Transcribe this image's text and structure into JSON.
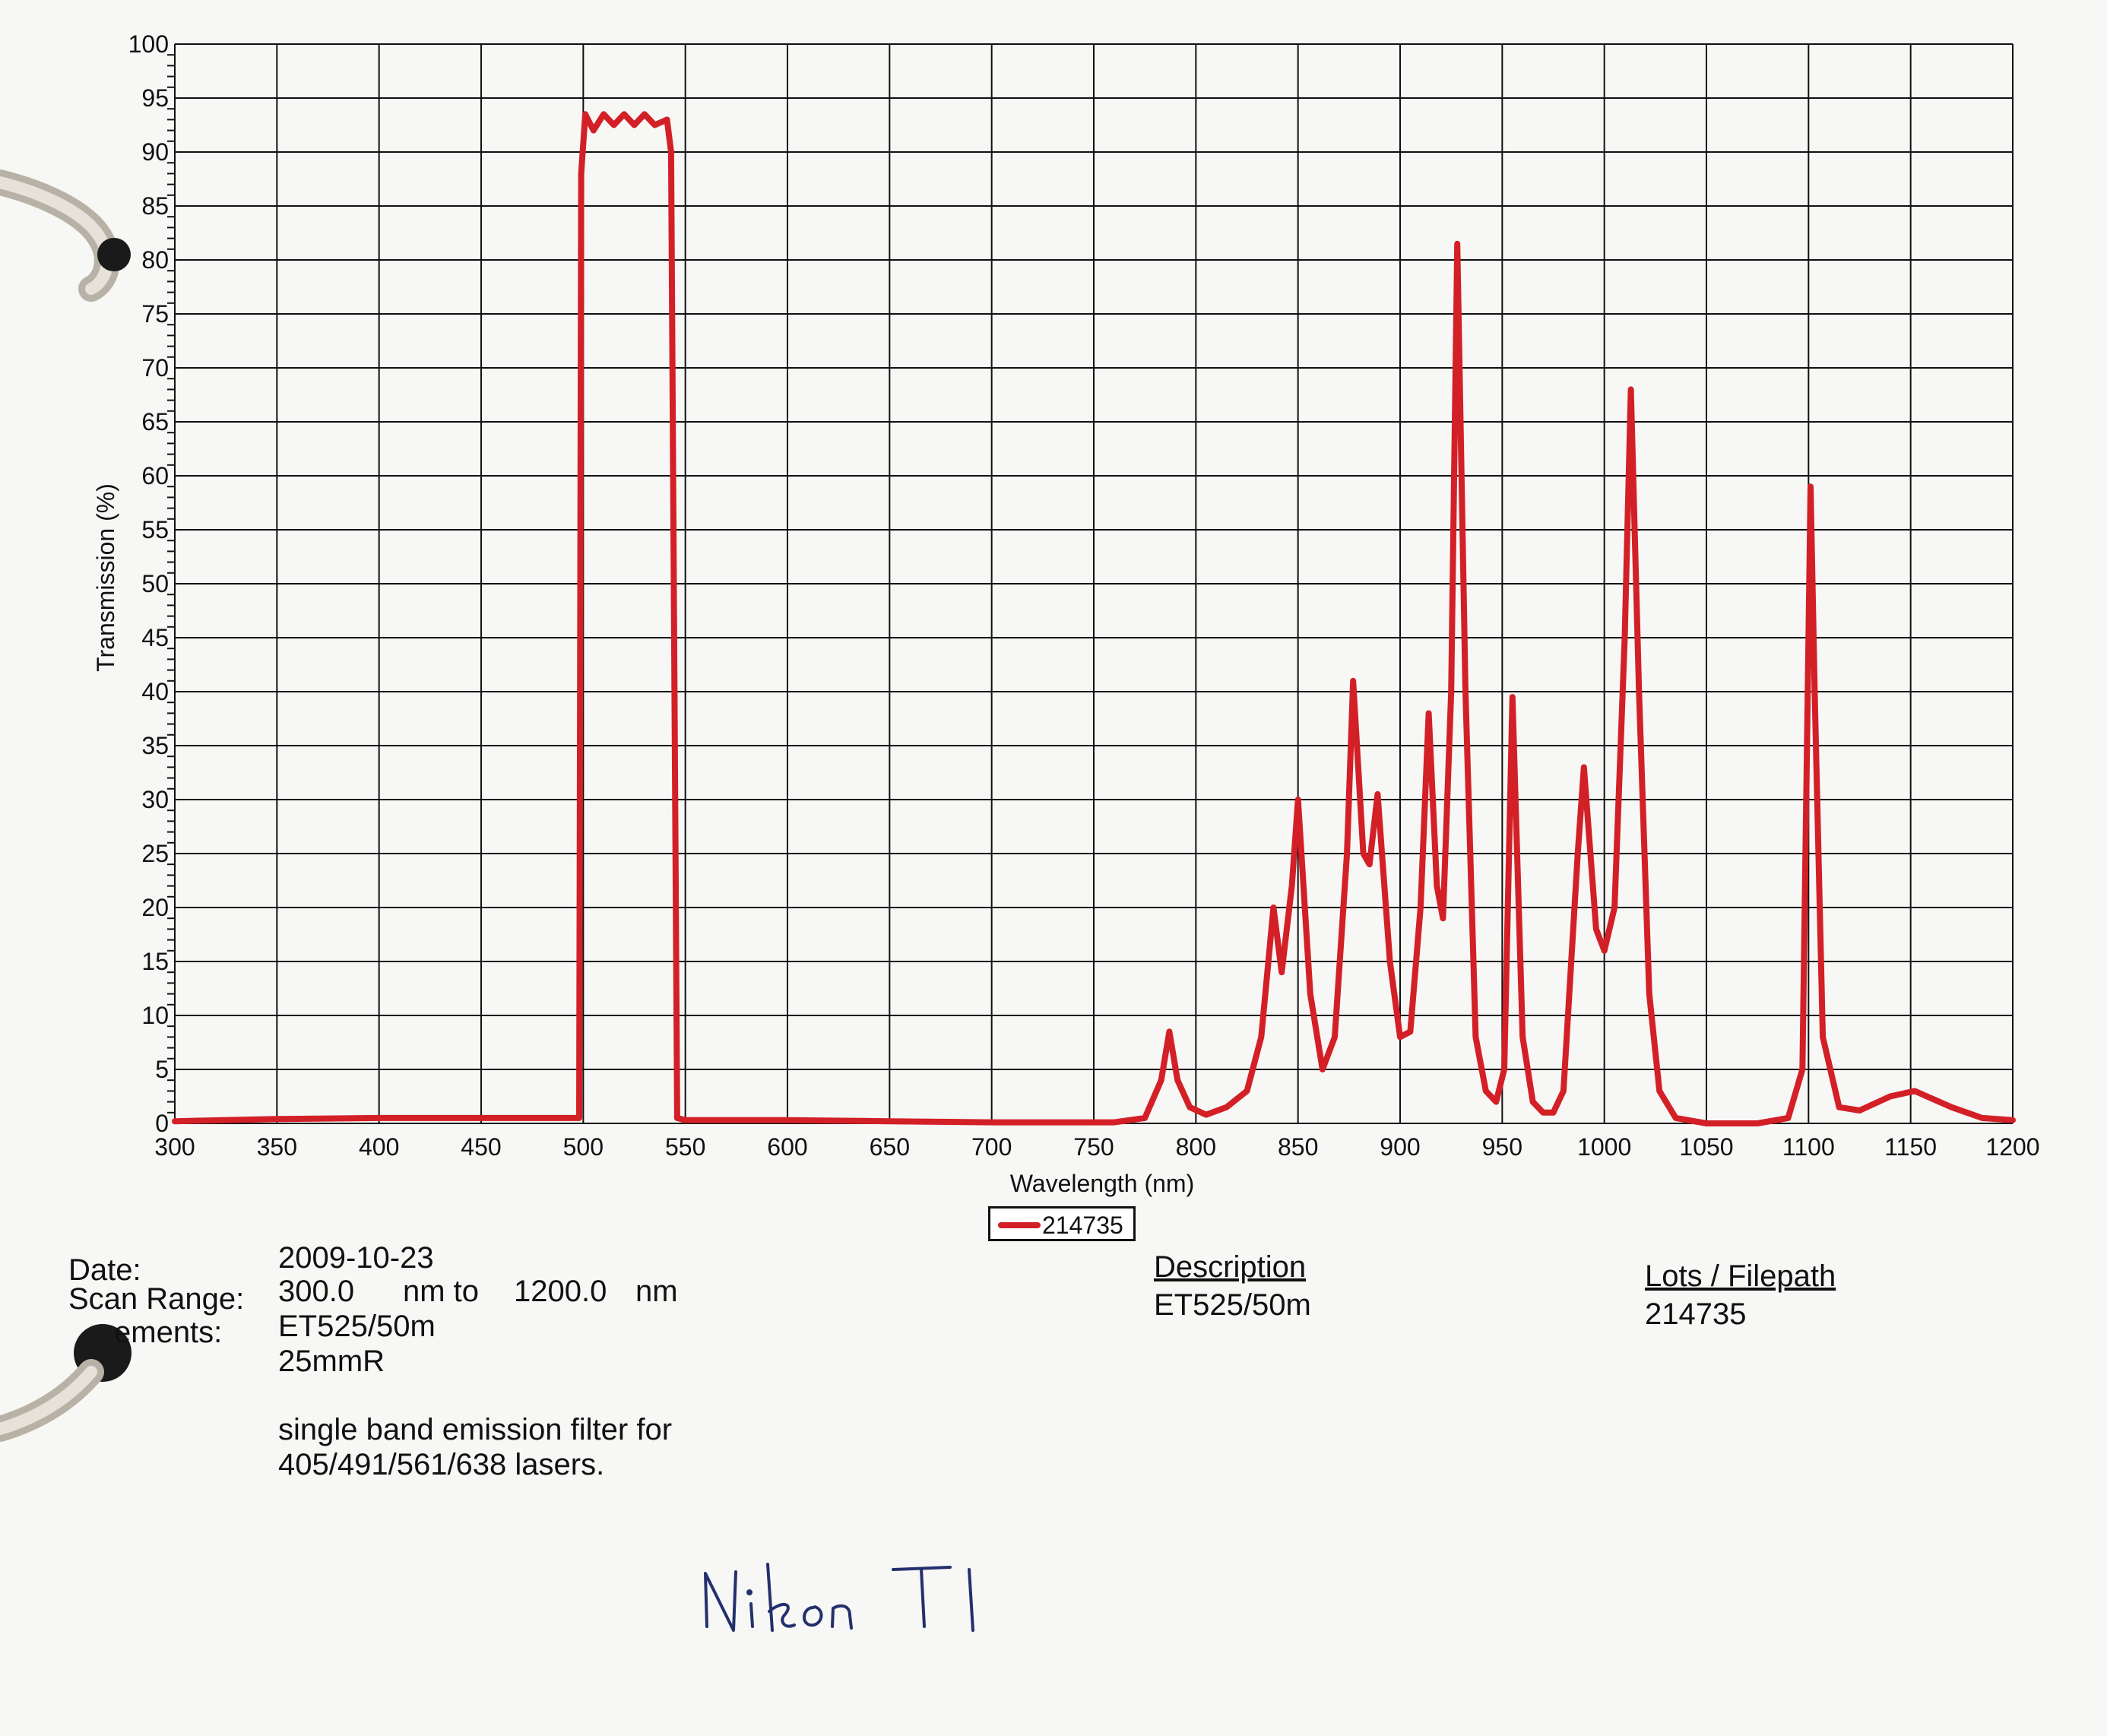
{
  "chart_data": {
    "type": "line",
    "xlabel": "Wavelength (nm)",
    "ylabel": "Transmission (%)",
    "xlim": [
      300,
      1200
    ],
    "ylim": [
      0,
      100
    ],
    "x_ticks": [
      300,
      350,
      400,
      450,
      500,
      550,
      600,
      650,
      700,
      750,
      800,
      850,
      900,
      950,
      1000,
      1050,
      1100,
      1150,
      1200
    ],
    "y_ticks": [
      0,
      5,
      10,
      15,
      20,
      25,
      30,
      35,
      40,
      45,
      50,
      55,
      60,
      65,
      70,
      75,
      80,
      85,
      90,
      95,
      100
    ],
    "grid": true,
    "legend_position": "bottom-center",
    "series": [
      {
        "name": "214735",
        "color": "#d32027",
        "points": [
          [
            300,
            0.2
          ],
          [
            350,
            0.4
          ],
          [
            400,
            0.5
          ],
          [
            450,
            0.5
          ],
          [
            498,
            0.5
          ],
          [
            499,
            88
          ],
          [
            501,
            93.5
          ],
          [
            505,
            92
          ],
          [
            510,
            93.5
          ],
          [
            515,
            92.5
          ],
          [
            520,
            93.5
          ],
          [
            525,
            92.5
          ],
          [
            530,
            93.5
          ],
          [
            535,
            92.5
          ],
          [
            541,
            93
          ],
          [
            543,
            90
          ],
          [
            546,
            0.5
          ],
          [
            550,
            0.3
          ],
          [
            600,
            0.3
          ],
          [
            650,
            0.2
          ],
          [
            700,
            0.1
          ],
          [
            760,
            0.1
          ],
          [
            775,
            0.5
          ],
          [
            783,
            4
          ],
          [
            787,
            8.5
          ],
          [
            791,
            4
          ],
          [
            797,
            1.5
          ],
          [
            805,
            0.8
          ],
          [
            815,
            1.5
          ],
          [
            825,
            3
          ],
          [
            832,
            8
          ],
          [
            838,
            20
          ],
          [
            842,
            14
          ],
          [
            847,
            22
          ],
          [
            850,
            30
          ],
          [
            856,
            12
          ],
          [
            862,
            5
          ],
          [
            868,
            8
          ],
          [
            874,
            25
          ],
          [
            877,
            41
          ],
          [
            882,
            25
          ],
          [
            885,
            24
          ],
          [
            889,
            30.5
          ],
          [
            895,
            15
          ],
          [
            900,
            8
          ],
          [
            905,
            8.5
          ],
          [
            910,
            20
          ],
          [
            914,
            38
          ],
          [
            918,
            22
          ],
          [
            921,
            19
          ],
          [
            925,
            40
          ],
          [
            928,
            81.5
          ],
          [
            932,
            40
          ],
          [
            937,
            8
          ],
          [
            942,
            3
          ],
          [
            947,
            2
          ],
          [
            951,
            5
          ],
          [
            955,
            39.5
          ],
          [
            960,
            8
          ],
          [
            965,
            2
          ],
          [
            970,
            1
          ],
          [
            975,
            1
          ],
          [
            980,
            3
          ],
          [
            987,
            25
          ],
          [
            990,
            33
          ],
          [
            996,
            18
          ],
          [
            1000,
            16
          ],
          [
            1005,
            20
          ],
          [
            1010,
            45
          ],
          [
            1013,
            68
          ],
          [
            1017,
            40
          ],
          [
            1022,
            12
          ],
          [
            1027,
            3
          ],
          [
            1035,
            0.5
          ],
          [
            1050,
            0
          ],
          [
            1075,
            0
          ],
          [
            1090,
            0.5
          ],
          [
            1097,
            5
          ],
          [
            1100,
            45
          ],
          [
            1101,
            59
          ],
          [
            1103,
            40
          ],
          [
            1107,
            8
          ],
          [
            1115,
            1.5
          ],
          [
            1125,
            1.2
          ],
          [
            1140,
            2.5
          ],
          [
            1152,
            3
          ],
          [
            1170,
            1.5
          ],
          [
            1185,
            0.5
          ],
          [
            1200,
            0.3
          ]
        ]
      }
    ],
    "legend": [
      "214735"
    ]
  },
  "details": {
    "date_label": "Date:",
    "date_value": "2009-10-23",
    "scan_range_label": "Scan Range:",
    "scan_range_start": "300.0",
    "scan_range_mid": "nm to",
    "scan_range_end": "1200.0",
    "scan_range_unit": "nm",
    "comments_label": "ements:",
    "comments_lines": [
      "ET525/50m",
      "25mmR",
      "",
      "single band emission filter for",
      "405/491/561/638 lasers."
    ],
    "description_header": "Description",
    "description_value": "ET525/50m",
    "lots_header": "Lots / Filepath",
    "lots_value": "214735"
  },
  "handwritten_note": "Nikon TI",
  "colors": {
    "series_red": "#d32027",
    "paper": "#f7f7f5",
    "binder": "#c8c3b8"
  }
}
